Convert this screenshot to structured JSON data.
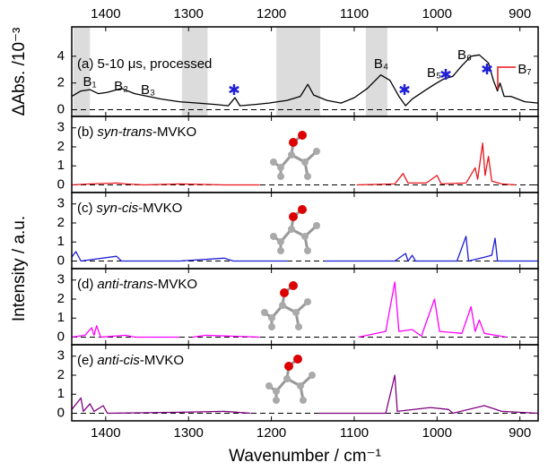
{
  "chart_data": [
    {
      "type": "line",
      "label": "(a) 5-10 μs, processed",
      "y_label": "ΔAbs. /10⁻³",
      "xlim": [
        1441,
        878
      ],
      "xticks": [
        1400,
        1300,
        1200,
        1100,
        1000,
        900
      ],
      "ylim": [
        -0.5,
        6.2
      ],
      "yticks": [
        0,
        2,
        4
      ],
      "shaded_ranges": [
        [
          1439,
          1419
        ],
        [
          1308,
          1277
        ],
        [
          1194,
          1141
        ],
        [
          1086,
          1060
        ]
      ],
      "annotations": [
        "B₁",
        "B₂",
        "B₃",
        "B₄",
        "B₅",
        "B₆",
        "B₇"
      ],
      "annotation_color": "#e8161b",
      "x": [
        1441,
        1430,
        1419,
        1409,
        1398,
        1381,
        1365,
        1349,
        1333,
        1311,
        1289,
        1268,
        1252,
        1244,
        1238,
        1219,
        1203,
        1181,
        1165,
        1156,
        1149,
        1133,
        1116,
        1100,
        1084,
        1068,
        1057,
        1046,
        1038,
        1030,
        1013,
        1003,
        992,
        981,
        970,
        959,
        949,
        938,
        932,
        927,
        924,
        919,
        911,
        894,
        878
      ],
      "series": [
        {
          "color": "#000000",
          "values": [
            1.0,
            1.4,
            1.5,
            1.2,
            1.3,
            1.6,
            1.2,
            1.0,
            0.8,
            0.6,
            0.5,
            0.4,
            0.3,
            0.9,
            0.3,
            0.4,
            0.5,
            0.7,
            1.0,
            1.9,
            1.1,
            0.7,
            0.5,
            0.9,
            1.6,
            2.6,
            2.2,
            1.0,
            0.3,
            0.8,
            1.5,
            1.9,
            2.3,
            2.5,
            3.3,
            4.0,
            4.1,
            3.5,
            2.2,
            1.4,
            2.0,
            1.0,
            1.0,
            0.6,
            0.5
          ]
        }
      ]
    },
    {
      "type": "line",
      "label_prefix": "(b)",
      "label_italic": "syn-trans",
      "label_suffix": "-MVKO",
      "xlim": [
        1441,
        878
      ],
      "ylim": [
        -0.4,
        3.6
      ],
      "yticks": [
        0,
        1,
        2,
        3
      ],
      "x": [
        1441,
        1419,
        1387,
        1376,
        1354,
        1311,
        1257,
        1214,
        1150,
        1097,
        1051,
        1041,
        1035,
        1013,
        1000,
        995,
        965,
        954,
        951,
        945,
        942,
        938,
        934,
        922,
        905
      ],
      "series": [
        {
          "color": "#e8161b",
          "values": [
            0,
            0.05,
            0.1,
            0.05,
            0,
            0.05,
            0,
            0,
            null,
            0,
            0.05,
            0.6,
            0.1,
            0.1,
            0.5,
            0.05,
            0.1,
            0.9,
            0.3,
            2.2,
            0.5,
            1.5,
            0.2,
            0.05,
            0
          ]
        }
      ]
    },
    {
      "type": "line",
      "label_prefix": "(c)",
      "label_italic": "syn-cis",
      "label_suffix": "-MVKO",
      "y_label": "Intensity / a.u.",
      "xlim": [
        1441,
        878
      ],
      "ylim": [
        -0.4,
        3.6
      ],
      "yticks": [
        0,
        1,
        2,
        3
      ],
      "x": [
        1441,
        1436,
        1430,
        1387,
        1381,
        1311,
        1257,
        1246,
        1181,
        1160,
        1135,
        1051,
        1038,
        1035,
        1030,
        1026,
        976,
        965,
        962,
        943,
        934,
        930,
        927,
        878
      ],
      "series": [
        {
          "color": "#1f1fd6",
          "values": [
            0.2,
            0.5,
            0,
            0.25,
            0,
            0,
            0.15,
            0,
            0,
            null,
            0,
            0,
            0.4,
            0,
            0.3,
            0,
            0,
            1.3,
            0,
            0.2,
            0.3,
            1.2,
            0,
            0
          ]
        }
      ]
    },
    {
      "type": "line",
      "label_prefix": "(d)",
      "label_italic": "anti-trans",
      "label_suffix": "-MVKO",
      "xlim": [
        1441,
        878
      ],
      "ylim": [
        -0.4,
        3.6
      ],
      "yticks": [
        0,
        1,
        2,
        3
      ],
      "x": [
        1441,
        1425,
        1417,
        1414,
        1411,
        1406,
        1376,
        1365,
        1311,
        1303,
        1295,
        1279,
        1214,
        1150,
        1095,
        1062,
        1051,
        1046,
        1030,
        1019,
        1003,
        997,
        970,
        959,
        954,
        949,
        943,
        916
      ],
      "series": [
        {
          "color": "#ff00ff",
          "values": [
            0,
            0.1,
            0.5,
            0.1,
            0.6,
            0,
            0.1,
            0,
            0,
            null,
            0,
            0.1,
            0,
            null,
            0,
            0.3,
            2.9,
            0.3,
            0.4,
            0.05,
            2.0,
            0.3,
            0.2,
            1.6,
            0.3,
            0.9,
            0.2,
            0
          ]
        }
      ]
    },
    {
      "type": "line",
      "label_prefix": "(e)",
      "label_italic": "anti-cis",
      "label_suffix": "-MVKO",
      "x_label": "Wavenumber / cm⁻¹",
      "xlim": [
        1441,
        878
      ],
      "xticks": [
        1400,
        1300,
        1200,
        1100,
        1000,
        900
      ],
      "ylim": [
        -0.4,
        3.6
      ],
      "yticks": [
        0,
        1,
        2,
        3
      ],
      "x": [
        1441,
        1430,
        1427,
        1419,
        1414,
        1403,
        1398,
        1311,
        1257,
        1225,
        1180,
        1143,
        1062,
        1051,
        1048,
        1008,
        986,
        981,
        943,
        922,
        878
      ],
      "series": [
        {
          "color": "#800080",
          "values": [
            0.2,
            0.8,
            0.1,
            0.5,
            0.1,
            0.4,
            0,
            0.05,
            0.1,
            0,
            null,
            0,
            0,
            2.0,
            0.1,
            0.3,
            0.2,
            0,
            0.4,
            0.1,
            0
          ]
        }
      ]
    }
  ]
}
